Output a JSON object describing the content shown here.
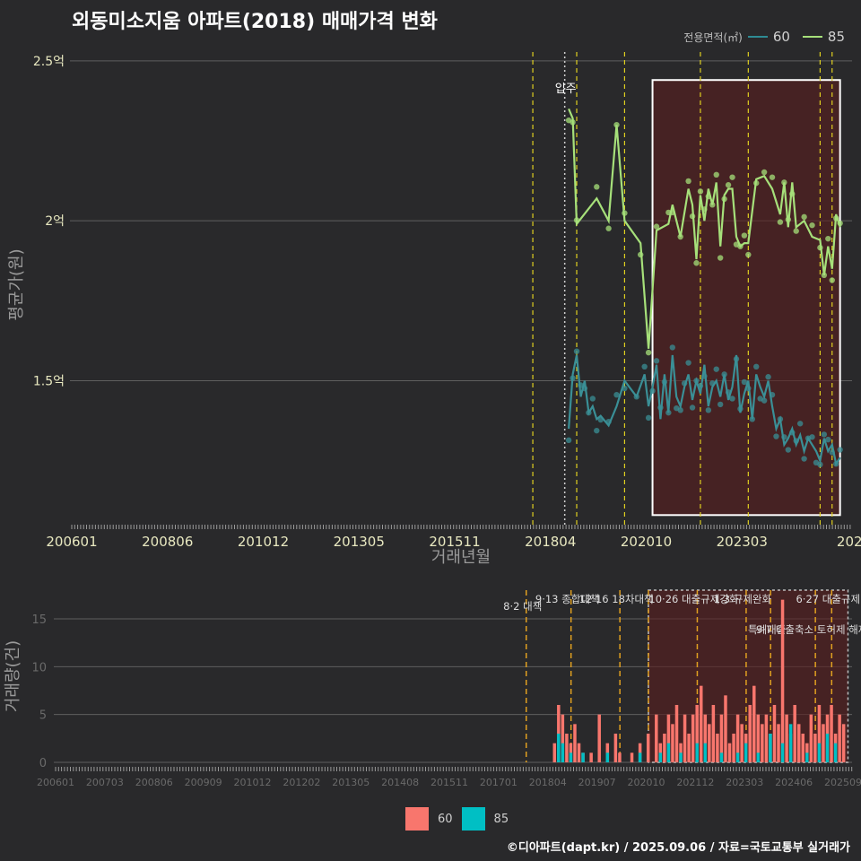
{
  "title": "외동미소지움 아파트(2018) 매매가격 변화",
  "legend": {
    "title": "전용면적(㎡)",
    "items": [
      {
        "label": "60",
        "line_color": "#2e8b94",
        "bar_color": "#f8766d"
      },
      {
        "label": "85",
        "line_color": "#a6e07a",
        "bar_color": "#00bfc4"
      }
    ]
  },
  "footer": "©디아파트(dapt.kr) / 2025.09.06 / 자료=국토교통부 실거래가",
  "chart_data": [
    {
      "type": "line",
      "title": "외동미소지움 아파트(2018) 매매가격 변화",
      "xlabel": "거래년월",
      "ylabel": "평균가(원)",
      "x_tick_labels": [
        "200601",
        "200806",
        "201012",
        "201305",
        "201511",
        "201804",
        "202010",
        "202303",
        "2025"
      ],
      "y_tick_labels": [
        "1.5억",
        "2억",
        "2.5억"
      ],
      "y_ticks": [
        1.5,
        2.0,
        2.5
      ],
      "ylim": [
        1.05,
        2.55
      ],
      "xlim": [
        2006.0,
        2025.6
      ],
      "annotation": "입주",
      "vlines_yellow": [
        2017.6,
        2018.7,
        2019.9,
        2021.8,
        2023.0,
        2024.8,
        2025.1
      ],
      "vline_dotted": 2018.4,
      "highlight": {
        "x0": 2020.6,
        "x1": 2025.3,
        "y0": 1.08,
        "y1": 2.44
      },
      "series": [
        {
          "name": "60",
          "color": "#3a8f96",
          "x": [
            2018.5,
            2018.6,
            2018.7,
            2018.8,
            2018.9,
            2019.0,
            2019.1,
            2019.2,
            2019.3,
            2019.5,
            2019.7,
            2019.9,
            2020.2,
            2020.4,
            2020.5,
            2020.6,
            2020.7,
            2020.8,
            2020.9,
            2021.0,
            2021.1,
            2021.2,
            2021.3,
            2021.4,
            2021.5,
            2021.6,
            2021.7,
            2021.8,
            2021.9,
            2022.0,
            2022.1,
            2022.2,
            2022.3,
            2022.4,
            2022.5,
            2022.6,
            2022.7,
            2022.8,
            2022.9,
            2023.0,
            2023.1,
            2023.2,
            2023.3,
            2023.4,
            2023.5,
            2023.6,
            2023.7,
            2023.8,
            2023.9,
            2024.0,
            2024.1,
            2024.2,
            2024.3,
            2024.4,
            2024.5,
            2024.6,
            2024.7,
            2024.8,
            2024.9,
            2025.0,
            2025.1,
            2025.2,
            2025.3
          ],
          "y": [
            1.35,
            1.52,
            1.58,
            1.45,
            1.5,
            1.4,
            1.42,
            1.38,
            1.39,
            1.36,
            1.42,
            1.5,
            1.45,
            1.52,
            1.42,
            1.48,
            1.55,
            1.38,
            1.52,
            1.4,
            1.58,
            1.45,
            1.42,
            1.48,
            1.52,
            1.44,
            1.5,
            1.46,
            1.55,
            1.42,
            1.48,
            1.5,
            1.45,
            1.52,
            1.44,
            1.48,
            1.58,
            1.4,
            1.46,
            1.5,
            1.38,
            1.52,
            1.48,
            1.45,
            1.5,
            1.42,
            1.35,
            1.38,
            1.3,
            1.32,
            1.35,
            1.3,
            1.33,
            1.28,
            1.32,
            1.3,
            1.28,
            1.25,
            1.32,
            1.28,
            1.3,
            1.24,
            1.26
          ]
        },
        {
          "name": "85",
          "color": "#a6e07a",
          "x": [
            2018.5,
            2018.6,
            2018.7,
            2019.2,
            2019.5,
            2019.7,
            2019.9,
            2020.3,
            2020.5,
            2020.7,
            2021.0,
            2021.1,
            2021.3,
            2021.5,
            2021.6,
            2021.7,
            2021.8,
            2021.9,
            2022.0,
            2022.1,
            2022.2,
            2022.3,
            2022.4,
            2022.5,
            2022.6,
            2022.7,
            2022.8,
            2022.9,
            2023.0,
            2023.2,
            2023.4,
            2023.6,
            2023.8,
            2023.9,
            2024.0,
            2024.1,
            2024.2,
            2024.4,
            2024.6,
            2024.8,
            2024.9,
            2025.0,
            2025.1,
            2025.2,
            2025.3
          ],
          "y": [
            2.35,
            2.32,
            1.99,
            2.07,
            2.0,
            2.3,
            2.0,
            1.93,
            1.6,
            1.97,
            1.99,
            2.05,
            1.95,
            2.1,
            2.05,
            1.88,
            2.08,
            2.0,
            2.1,
            2.05,
            2.12,
            1.92,
            2.08,
            2.1,
            2.1,
            1.95,
            1.92,
            1.93,
            1.93,
            2.13,
            2.14,
            2.1,
            2.02,
            2.12,
            1.98,
            2.12,
            1.98,
            2.0,
            1.95,
            1.94,
            1.83,
            1.92,
            1.85,
            2.02,
            1.98
          ]
        }
      ]
    },
    {
      "type": "bar",
      "ylabel": "거래량(건)",
      "x_tick_labels": [
        "200601",
        "200703",
        "200806",
        "200909",
        "201012",
        "201202",
        "201305",
        "201408",
        "201511",
        "201701",
        "201804",
        "201907",
        "202010",
        "202112",
        "202303",
        "202406",
        "202509"
      ],
      "y_ticks": [
        0,
        5,
        10,
        15
      ],
      "ylim": [
        0,
        18
      ],
      "policy_lines": [
        {
          "x": 2017.6,
          "label": "8·2 대책"
        },
        {
          "x": 2018.7,
          "label": "9·13 종합대책"
        },
        {
          "x": 2019.9,
          "label": "12·16 18차대책"
        },
        {
          "x": 2020.6,
          "label": ""
        },
        {
          "x": 2021.8,
          "label": "10·26 대출규제강화"
        },
        {
          "x": 2023.0,
          "label": "1·3 규제완화"
        },
        {
          "x": 2023.6,
          "label": "특례대출"
        },
        {
          "x": 2024.7,
          "label": "9·7 대출축소 토허제 해제"
        },
        {
          "x": 2025.1,
          "label": "6·27 대출규제"
        }
      ],
      "highlight": {
        "x0": 2020.6,
        "x1": 2025.5
      },
      "series": [
        {
          "name": "60",
          "color": "#f8766d",
          "x": [
            2018.3,
            2018.4,
            2018.5,
            2018.6,
            2018.7,
            2018.8,
            2018.9,
            2019.0,
            2019.2,
            2019.4,
            2019.6,
            2019.8,
            2019.9,
            2020.2,
            2020.4,
            2020.6,
            2020.8,
            2020.9,
            2021.0,
            2021.1,
            2021.2,
            2021.3,
            2021.4,
            2021.5,
            2021.6,
            2021.7,
            2021.8,
            2021.9,
            2022.0,
            2022.1,
            2022.2,
            2022.3,
            2022.4,
            2022.5,
            2022.6,
            2022.7,
            2022.8,
            2022.9,
            2023.0,
            2023.1,
            2023.2,
            2023.3,
            2023.4,
            2023.5,
            2023.6,
            2023.7,
            2023.8,
            2023.9,
            2024.0,
            2024.1,
            2024.2,
            2024.3,
            2024.4,
            2024.5,
            2024.6,
            2024.7,
            2024.8,
            2024.9,
            2025.0,
            2025.1,
            2025.2,
            2025.3,
            2025.4
          ],
          "values": [
            2,
            6,
            5,
            3,
            2,
            4,
            2,
            1,
            1,
            5,
            2,
            3,
            1,
            1,
            2,
            3,
            5,
            2,
            3,
            5,
            4,
            6,
            2,
            5,
            3,
            5,
            6,
            8,
            5,
            4,
            6,
            3,
            5,
            7,
            2,
            3,
            5,
            4,
            3,
            6,
            8,
            5,
            4,
            5,
            3,
            6,
            4,
            17,
            5,
            3,
            6,
            4,
            3,
            2,
            5,
            3,
            6,
            4,
            5,
            6,
            3,
            5,
            4
          ]
        },
        {
          "name": "85",
          "color": "#00bfc4",
          "x": [
            2018.4,
            2018.5,
            2018.7,
            2019.0,
            2019.6,
            2020.4,
            2020.9,
            2021.1,
            2021.4,
            2021.8,
            2022.0,
            2022.4,
            2022.8,
            2023.0,
            2023.3,
            2023.6,
            2023.9,
            2024.1,
            2024.5,
            2024.8,
            2025.0,
            2025.2
          ],
          "values": [
            3,
            2,
            1,
            1,
            1,
            1,
            1,
            2,
            1,
            2,
            2,
            1,
            1,
            2,
            1,
            3,
            2,
            4,
            1,
            2,
            3,
            2
          ]
        }
      ]
    }
  ]
}
